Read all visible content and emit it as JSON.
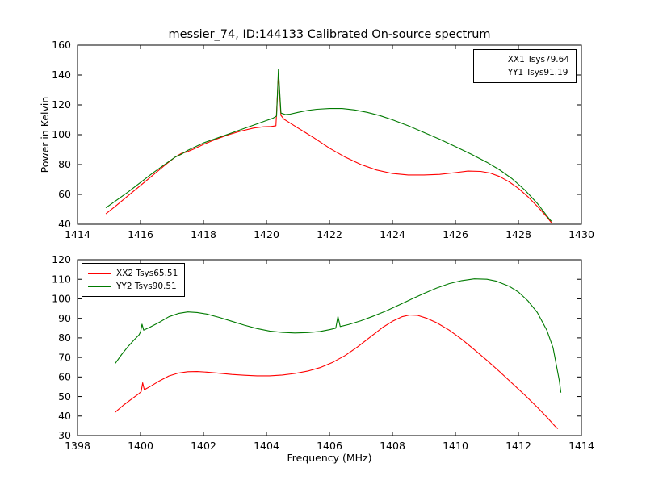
{
  "figure": {
    "title": "messier_74, ID:144133 Calibrated On-source spectrum",
    "xlabel": "Frequency (MHz)",
    "ylabel": "Power in Kelvin",
    "background_color": "#ffffff",
    "frame_color": "#000000"
  },
  "chart_data": [
    {
      "type": "line",
      "title": "",
      "xlabel": "",
      "ylabel": "Power in Kelvin",
      "xlim": [
        1414,
        1430
      ],
      "ylim": [
        40,
        160
      ],
      "xticks": [
        1414,
        1416,
        1418,
        1420,
        1422,
        1424,
        1426,
        1428,
        1430
      ],
      "yticks": [
        40,
        60,
        80,
        100,
        120,
        140,
        160
      ],
      "grid": false,
      "legend_position": "top-right",
      "series": [
        {
          "name": "XX1 Tsys79.64",
          "color": "#ff0000",
          "points": [
            [
              1414.9,
              47
            ],
            [
              1415.2,
              52
            ],
            [
              1415.6,
              59
            ],
            [
              1416.0,
              66
            ],
            [
              1416.4,
              73
            ],
            [
              1416.8,
              80
            ],
            [
              1417.1,
              85
            ],
            [
              1417.3,
              87.5
            ],
            [
              1417.45,
              88.3
            ],
            [
              1417.7,
              90.5
            ],
            [
              1418.0,
              93.5
            ],
            [
              1418.4,
              97
            ],
            [
              1418.8,
              100
            ],
            [
              1419.2,
              102.5
            ],
            [
              1419.6,
              104.5
            ],
            [
              1419.9,
              105.3
            ],
            [
              1420.15,
              105.5
            ],
            [
              1420.3,
              106
            ],
            [
              1420.38,
              140
            ],
            [
              1420.46,
              113
            ],
            [
              1420.55,
              110.5
            ],
            [
              1420.7,
              108.5
            ],
            [
              1421.0,
              104.5
            ],
            [
              1421.5,
              98
            ],
            [
              1422.0,
              91
            ],
            [
              1422.5,
              85
            ],
            [
              1423.0,
              80
            ],
            [
              1423.5,
              76.3
            ],
            [
              1424.0,
              74
            ],
            [
              1424.5,
              73
            ],
            [
              1425.0,
              73
            ],
            [
              1425.5,
              73.4
            ],
            [
              1426.0,
              74.6
            ],
            [
              1426.4,
              75.6
            ],
            [
              1426.8,
              75.4
            ],
            [
              1427.1,
              74.3
            ],
            [
              1427.4,
              72
            ],
            [
              1427.7,
              68.5
            ],
            [
              1428.0,
              64
            ],
            [
              1428.3,
              58.5
            ],
            [
              1428.6,
              52
            ],
            [
              1428.9,
              45
            ],
            [
              1429.05,
              41
            ]
          ]
        },
        {
          "name": "YY1 Tsys91.19",
          "color": "#007a00",
          "points": [
            [
              1414.9,
              51
            ],
            [
              1415.2,
              55.5
            ],
            [
              1415.6,
              61.5
            ],
            [
              1416.0,
              68
            ],
            [
              1416.4,
              74.5
            ],
            [
              1416.8,
              80.5
            ],
            [
              1417.1,
              85
            ],
            [
              1417.3,
              87
            ],
            [
              1417.5,
              89.5
            ],
            [
              1418.0,
              94.5
            ],
            [
              1418.4,
              97.5
            ],
            [
              1418.8,
              100.5
            ],
            [
              1419.2,
              103.5
            ],
            [
              1419.6,
              106.5
            ],
            [
              1420.0,
              109.5
            ],
            [
              1420.2,
              111
            ],
            [
              1420.32,
              112.5
            ],
            [
              1420.38,
              144
            ],
            [
              1420.46,
              114.5
            ],
            [
              1420.6,
              113.5
            ],
            [
              1420.75,
              113.8
            ],
            [
              1421.0,
              115
            ],
            [
              1421.3,
              116.2
            ],
            [
              1421.6,
              117
            ],
            [
              1422.0,
              117.5
            ],
            [
              1422.4,
              117.5
            ],
            [
              1422.8,
              116.6
            ],
            [
              1423.2,
              115
            ],
            [
              1423.6,
              112.8
            ],
            [
              1424.0,
              110
            ],
            [
              1424.5,
              106
            ],
            [
              1425.0,
              101.5
            ],
            [
              1425.5,
              97
            ],
            [
              1426.0,
              92
            ],
            [
              1426.5,
              87
            ],
            [
              1427.0,
              81.5
            ],
            [
              1427.4,
              76.5
            ],
            [
              1427.8,
              70.5
            ],
            [
              1428.2,
              63
            ],
            [
              1428.6,
              54
            ],
            [
              1429.0,
              43
            ],
            [
              1429.05,
              42
            ]
          ]
        }
      ]
    },
    {
      "type": "line",
      "title": "",
      "xlabel": "Frequency (MHz)",
      "ylabel": "",
      "xlim": [
        1398,
        1414
      ],
      "ylim": [
        30,
        120
      ],
      "xticks": [
        1398,
        1400,
        1402,
        1404,
        1406,
        1408,
        1410,
        1412,
        1414
      ],
      "yticks": [
        30,
        40,
        50,
        60,
        70,
        80,
        90,
        100,
        110,
        120
      ],
      "grid": false,
      "legend_position": "top-left",
      "series": [
        {
          "name": "XX2 Tsys65.51",
          "color": "#ff0000",
          "points": [
            [
              1399.2,
              42
            ],
            [
              1399.45,
              45.5
            ],
            [
              1399.7,
              48.5
            ],
            [
              1399.95,
              51.5
            ],
            [
              1400.02,
              52.5
            ],
            [
              1400.07,
              57
            ],
            [
              1400.12,
              53.5
            ],
            [
              1400.35,
              55.5
            ],
            [
              1400.6,
              58
            ],
            [
              1400.9,
              60.5
            ],
            [
              1401.2,
              62
            ],
            [
              1401.5,
              62.7
            ],
            [
              1401.8,
              62.8
            ],
            [
              1402.1,
              62.5
            ],
            [
              1402.5,
              61.9
            ],
            [
              1402.9,
              61.3
            ],
            [
              1403.3,
              60.9
            ],
            [
              1403.7,
              60.6
            ],
            [
              1404.1,
              60.6
            ],
            [
              1404.5,
              61
            ],
            [
              1404.9,
              61.8
            ],
            [
              1405.3,
              63
            ],
            [
              1405.7,
              64.8
            ],
            [
              1406.1,
              67.5
            ],
            [
              1406.5,
              71
            ],
            [
              1406.9,
              75.5
            ],
            [
              1407.3,
              80.5
            ],
            [
              1407.7,
              85.5
            ],
            [
              1408.0,
              88.5
            ],
            [
              1408.3,
              90.8
            ],
            [
              1408.55,
              91.7
            ],
            [
              1408.8,
              91.5
            ],
            [
              1409.1,
              90
            ],
            [
              1409.4,
              87.8
            ],
            [
              1409.8,
              84
            ],
            [
              1410.2,
              79.3
            ],
            [
              1410.6,
              74
            ],
            [
              1411.0,
              68.5
            ],
            [
              1411.4,
              62.8
            ],
            [
              1411.8,
              56.8
            ],
            [
              1412.2,
              50.8
            ],
            [
              1412.6,
              44.5
            ],
            [
              1412.9,
              39.5
            ],
            [
              1413.15,
              35
            ],
            [
              1413.25,
              33.5
            ]
          ]
        },
        {
          "name": "YY2 Tsys90.51",
          "color": "#007a00",
          "points": [
            [
              1399.2,
              67
            ],
            [
              1399.4,
              71.5
            ],
            [
              1399.6,
              75.5
            ],
            [
              1399.8,
              79
            ],
            [
              1399.95,
              81.5
            ],
            [
              1400.0,
              83
            ],
            [
              1400.05,
              87
            ],
            [
              1400.1,
              84
            ],
            [
              1400.3,
              85.5
            ],
            [
              1400.6,
              88
            ],
            [
              1400.9,
              90.8
            ],
            [
              1401.2,
              92.5
            ],
            [
              1401.5,
              93.3
            ],
            [
              1401.8,
              93
            ],
            [
              1402.1,
              92.2
            ],
            [
              1402.5,
              90.5
            ],
            [
              1402.9,
              88.5
            ],
            [
              1403.3,
              86.5
            ],
            [
              1403.7,
              84.8
            ],
            [
              1404.1,
              83.5
            ],
            [
              1404.5,
              82.8
            ],
            [
              1404.9,
              82.5
            ],
            [
              1405.3,
              82.7
            ],
            [
              1405.7,
              83.3
            ],
            [
              1406.0,
              84.2
            ],
            [
              1406.2,
              85
            ],
            [
              1406.27,
              91
            ],
            [
              1406.34,
              85.8
            ],
            [
              1406.6,
              86.8
            ],
            [
              1407.0,
              88.8
            ],
            [
              1407.4,
              91.2
            ],
            [
              1407.8,
              93.8
            ],
            [
              1408.2,
              96.8
            ],
            [
              1408.6,
              99.8
            ],
            [
              1409.0,
              102.8
            ],
            [
              1409.4,
              105.5
            ],
            [
              1409.8,
              107.8
            ],
            [
              1410.2,
              109.3
            ],
            [
              1410.6,
              110.2
            ],
            [
              1411.0,
              110
            ],
            [
              1411.3,
              109
            ],
            [
              1411.7,
              106.5
            ],
            [
              1412.0,
              103.5
            ],
            [
              1412.3,
              99
            ],
            [
              1412.6,
              93
            ],
            [
              1412.9,
              84
            ],
            [
              1413.1,
              75
            ],
            [
              1413.3,
              58
            ],
            [
              1413.35,
              52
            ]
          ]
        }
      ]
    }
  ]
}
